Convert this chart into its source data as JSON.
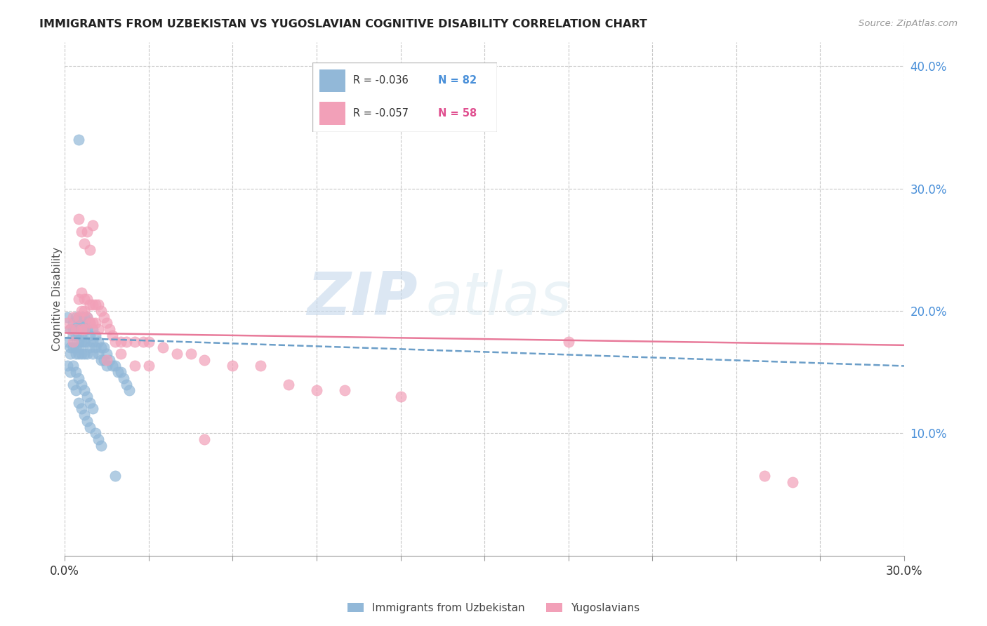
{
  "title": "IMMIGRANTS FROM UZBEKISTAN VS YUGOSLAVIAN COGNITIVE DISABILITY CORRELATION CHART",
  "source": "Source: ZipAtlas.com",
  "ylabel": "Cognitive Disability",
  "xlim": [
    0.0,
    0.3
  ],
  "ylim": [
    0.0,
    0.42
  ],
  "xticks": [
    0.0,
    0.03,
    0.06,
    0.09,
    0.12,
    0.15,
    0.18,
    0.21,
    0.24,
    0.27,
    0.3
  ],
  "xticklabels_show": {
    "0.0": "0.0%",
    "0.30": "30.0%"
  },
  "yticks_right": [
    0.1,
    0.2,
    0.3,
    0.4
  ],
  "ytick_labels_right": [
    "10.0%",
    "20.0%",
    "30.0%",
    "40.0%"
  ],
  "blue_color": "#92b8d8",
  "pink_color": "#f2a0b8",
  "blue_line_color": "#6b9ec8",
  "pink_line_color": "#e87a9a",
  "watermark_zip": "ZIP",
  "watermark_atlas": "atlas",
  "background_color": "#ffffff",
  "grid_color": "#c8c8c8",
  "blue_scatter_x": [
    0.001,
    0.001,
    0.002,
    0.002,
    0.002,
    0.003,
    0.003,
    0.003,
    0.003,
    0.004,
    0.004,
    0.004,
    0.004,
    0.004,
    0.005,
    0.005,
    0.005,
    0.005,
    0.005,
    0.005,
    0.005,
    0.006,
    0.006,
    0.006,
    0.006,
    0.006,
    0.006,
    0.007,
    0.007,
    0.007,
    0.007,
    0.007,
    0.008,
    0.008,
    0.008,
    0.008,
    0.009,
    0.009,
    0.009,
    0.01,
    0.01,
    0.01,
    0.011,
    0.011,
    0.012,
    0.012,
    0.013,
    0.013,
    0.014,
    0.014,
    0.015,
    0.015,
    0.016,
    0.017,
    0.018,
    0.019,
    0.02,
    0.021,
    0.022,
    0.023,
    0.001,
    0.002,
    0.003,
    0.003,
    0.004,
    0.004,
    0.005,
    0.005,
    0.006,
    0.006,
    0.007,
    0.007,
    0.008,
    0.008,
    0.009,
    0.009,
    0.01,
    0.011,
    0.012,
    0.013,
    0.005,
    0.018
  ],
  "blue_scatter_y": [
    0.195,
    0.175,
    0.185,
    0.17,
    0.165,
    0.19,
    0.185,
    0.18,
    0.17,
    0.195,
    0.185,
    0.18,
    0.17,
    0.165,
    0.195,
    0.19,
    0.185,
    0.18,
    0.175,
    0.17,
    0.165,
    0.195,
    0.19,
    0.185,
    0.18,
    0.175,
    0.165,
    0.195,
    0.19,
    0.185,
    0.175,
    0.165,
    0.195,
    0.185,
    0.175,
    0.165,
    0.19,
    0.18,
    0.17,
    0.185,
    0.175,
    0.165,
    0.18,
    0.17,
    0.175,
    0.165,
    0.17,
    0.16,
    0.17,
    0.16,
    0.165,
    0.155,
    0.16,
    0.155,
    0.155,
    0.15,
    0.15,
    0.145,
    0.14,
    0.135,
    0.155,
    0.15,
    0.155,
    0.14,
    0.15,
    0.135,
    0.145,
    0.125,
    0.14,
    0.12,
    0.135,
    0.115,
    0.13,
    0.11,
    0.125,
    0.105,
    0.12,
    0.1,
    0.095,
    0.09,
    0.34,
    0.065
  ],
  "pink_scatter_x": [
    0.001,
    0.002,
    0.003,
    0.003,
    0.004,
    0.005,
    0.005,
    0.006,
    0.006,
    0.006,
    0.007,
    0.007,
    0.007,
    0.008,
    0.008,
    0.009,
    0.009,
    0.01,
    0.01,
    0.011,
    0.011,
    0.012,
    0.012,
    0.013,
    0.014,
    0.015,
    0.016,
    0.017,
    0.018,
    0.02,
    0.022,
    0.025,
    0.028,
    0.03,
    0.035,
    0.04,
    0.045,
    0.05,
    0.06,
    0.07,
    0.08,
    0.09,
    0.1,
    0.12,
    0.005,
    0.006,
    0.007,
    0.008,
    0.009,
    0.01,
    0.015,
    0.02,
    0.025,
    0.03,
    0.05,
    0.18,
    0.25,
    0.26
  ],
  "pink_scatter_y": [
    0.19,
    0.185,
    0.195,
    0.175,
    0.185,
    0.21,
    0.195,
    0.215,
    0.2,
    0.185,
    0.21,
    0.2,
    0.185,
    0.21,
    0.195,
    0.205,
    0.19,
    0.205,
    0.19,
    0.205,
    0.19,
    0.205,
    0.185,
    0.2,
    0.195,
    0.19,
    0.185,
    0.18,
    0.175,
    0.175,
    0.175,
    0.175,
    0.175,
    0.175,
    0.17,
    0.165,
    0.165,
    0.16,
    0.155,
    0.155,
    0.14,
    0.135,
    0.135,
    0.13,
    0.275,
    0.265,
    0.255,
    0.265,
    0.25,
    0.27,
    0.16,
    0.165,
    0.155,
    0.155,
    0.095,
    0.175,
    0.065,
    0.06
  ],
  "blue_trend_x0": 0.0,
  "blue_trend_x1": 0.3,
  "blue_trend_y0": 0.178,
  "blue_trend_y1": 0.155,
  "pink_trend_x0": 0.0,
  "pink_trend_x1": 0.3,
  "pink_trend_y0": 0.182,
  "pink_trend_y1": 0.172
}
